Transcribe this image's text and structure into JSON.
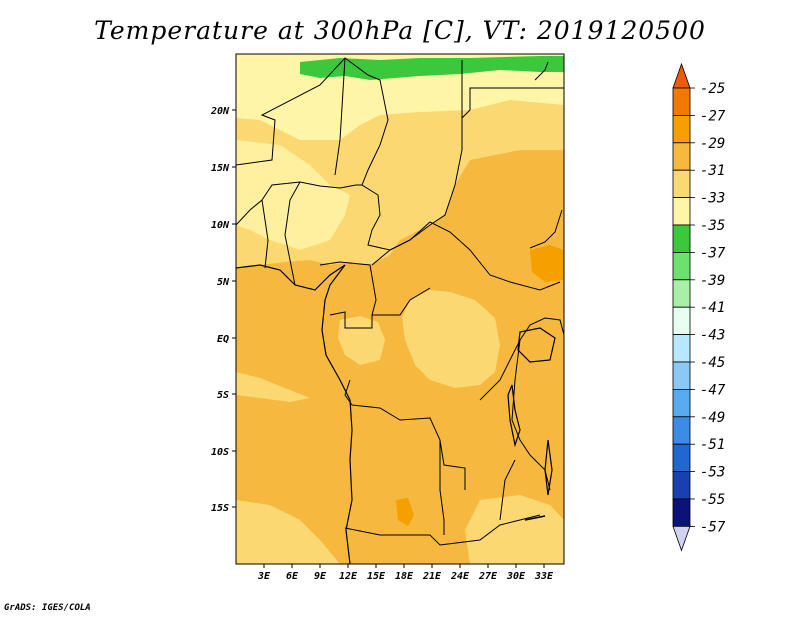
{
  "title": "Temperature at 300hPa [C], VT: 2019120500",
  "footer": "GrADS: IGES/COLA",
  "map": {
    "lat_labels": [
      "20N",
      "15N",
      "10N",
      "5N",
      "EQ",
      "5S",
      "10S",
      "15S"
    ],
    "lon_labels": [
      "3E",
      "6E",
      "9E",
      "12E",
      "15E",
      "18E",
      "21E",
      "24E",
      "27E",
      "30E",
      "33E"
    ]
  },
  "colorbar": {
    "labels": [
      "-25",
      "-27",
      "-29",
      "-31",
      "-33",
      "-35",
      "-37",
      "-39",
      "-41",
      "-43",
      "-45",
      "-47",
      "-49",
      "-51",
      "-53",
      "-55",
      "-57"
    ],
    "colors": [
      "#f05a00",
      "#f07a00",
      "#f5a000",
      "#f7b83f",
      "#fcd872",
      "#fef5a6",
      "#3cc83c",
      "#6ee06e",
      "#a8f0a8",
      "#e6fff0",
      "#b8e8ff",
      "#8cc8f5",
      "#5aaaf0",
      "#3c8ce6",
      "#2266d2",
      "#1a40b0",
      "#0a1478",
      "#d2d2f5"
    ]
  },
  "colors": {
    "warm_orange": "#f7b83f",
    "mid_yellow": "#fcd872",
    "light_yellow": "#fef5a6",
    "green": "#3cc83c",
    "dark_orange": "#f5a000"
  }
}
